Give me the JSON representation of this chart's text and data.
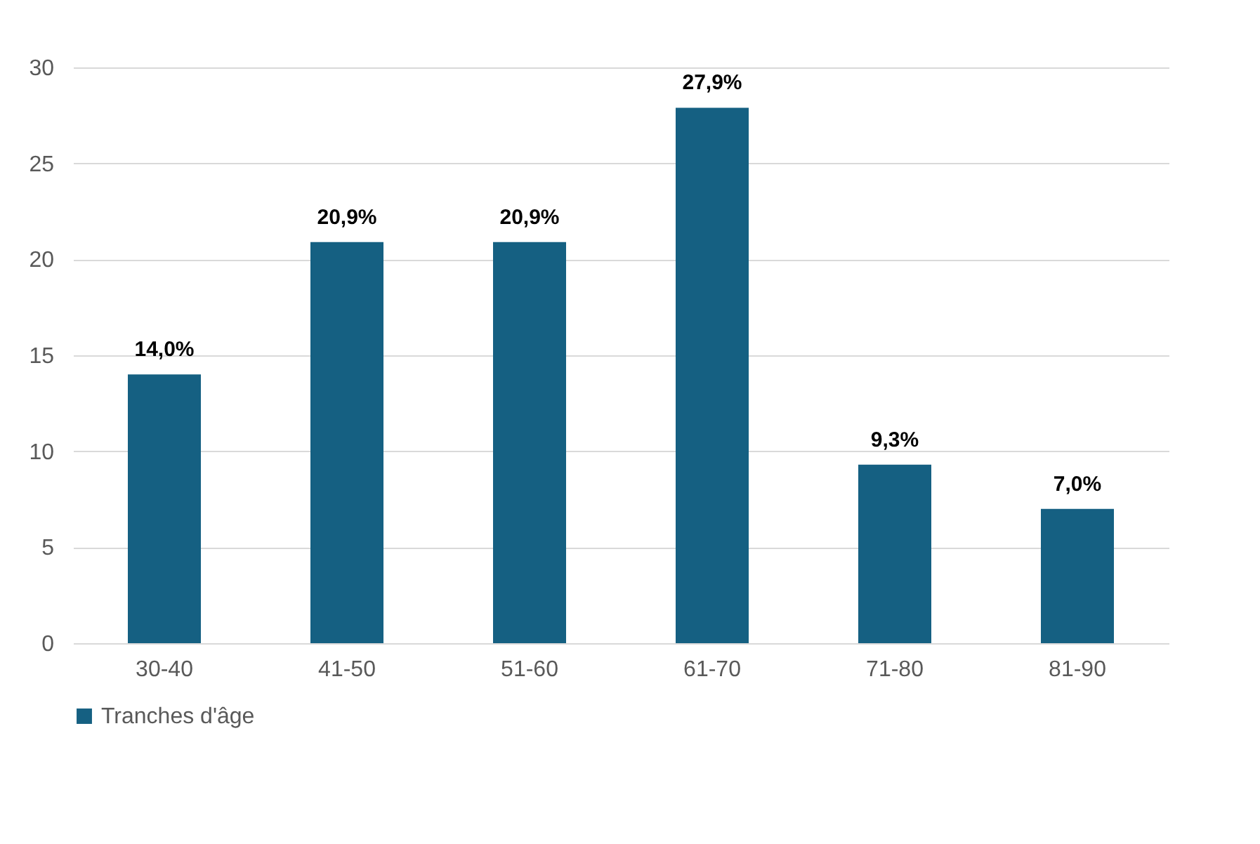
{
  "chart_data": {
    "type": "bar",
    "categories": [
      "30-40",
      "41-50",
      "51-60",
      "61-70",
      "71-80",
      "81-90"
    ],
    "series": [
      {
        "name": "Tranches d'âge",
        "color": "#156082",
        "values": [
          14.0,
          20.9,
          20.9,
          27.9,
          9.3,
          7.0
        ],
        "value_labels": [
          "14,0%",
          "20,9%",
          "20,9%",
          "27,9%",
          "9,3%",
          "7,0%"
        ]
      }
    ],
    "ylim": [
      0,
      30
    ],
    "yticks": [
      0,
      5,
      10,
      15,
      20,
      25,
      30
    ],
    "grid": "y",
    "legend": "bottom"
  }
}
